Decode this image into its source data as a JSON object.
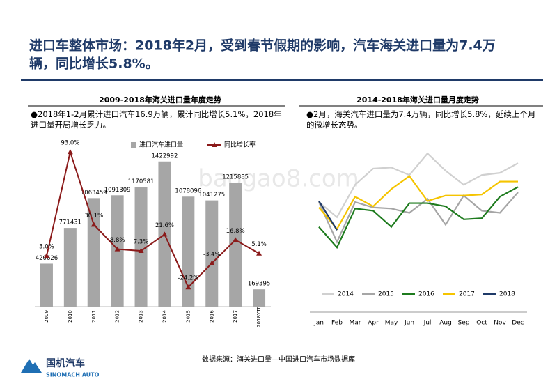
{
  "title_line1": "进口车整体市场：2018年2月，受到春节假期的影响，汽车海关进口量为7.4万",
  "title_line2": "辆，同比增长5.8%。",
  "source": "数据来源：海关进口量—中国进口汽车市场数据库",
  "watermark": "baogao8.com",
  "logo": {
    "name": "国机汽车",
    "english": "SINOMACH AUTO"
  },
  "chart_data": [
    {
      "type": "bar_line",
      "title": "2009-2018年海关进口量年度走势",
      "note": "●2018年1-2月累计进口汽车16.9万辆，累计同比增长5.1%，2018年进口量开局增长乏力。",
      "categories": [
        "2009",
        "2010",
        "2011",
        "2012",
        "2013",
        "2014",
        "2015",
        "2016",
        "2017",
        "2018YTD"
      ],
      "series": [
        {
          "name": "进口汽车进口量",
          "color": "#a6a6a6",
          "values": [
            420626,
            771431,
            1063459,
            1091309,
            1170581,
            1422992,
            1078096,
            1041275,
            1215885,
            169395
          ]
        },
        {
          "name": "同比增长率",
          "color": "#8b1a1a",
          "axis": "y2",
          "values": [
            3.0,
            93.0,
            30.1,
            8.8,
            7.3,
            21.6,
            -24.2,
            -3.4,
            16.8,
            5.1
          ],
          "value_labels": [
            "3.0%",
            "93.0%",
            "30.1%",
            "8.8%",
            "7.3%",
            "21.6%",
            "-24.2%",
            "-3.4%",
            "16.8%",
            "5.1%"
          ]
        }
      ],
      "ylim": [
        0,
        1640000
      ],
      "y2lim": [
        -41,
        104
      ]
    },
    {
      "type": "line",
      "title": "2014-2018年海关进口量月度走势",
      "note": "●2月，海关汽车进口量为7.4万辆，同比增长5.8%，延续上个月的微增长态势。",
      "categories": [
        "Jan",
        "Feb",
        "Mar",
        "Apr",
        "May",
        "Jun",
        "Jul",
        "Aug",
        "Sep",
        "Oct",
        "Nov",
        "Dec"
      ],
      "series": [
        {
          "name": "2014",
          "color": "#d0d0d0",
          "values": [
            10.0,
            8.6,
            11.6,
            13.1,
            13.2,
            12.5,
            14.5,
            12.9,
            11.6,
            12.5,
            12.7,
            13.6
          ]
        },
        {
          "name": "2015",
          "color": "#a6a6a6",
          "values": [
            10.0,
            6.3,
            10.0,
            9.5,
            9.4,
            9.0,
            10.3,
            7.9,
            10.6,
            9.2,
            9.0,
            10.9
          ]
        },
        {
          "name": "2016",
          "color": "#1e7b1e",
          "values": [
            7.7,
            5.8,
            9.4,
            9.2,
            7.7,
            9.9,
            9.9,
            9.6,
            8.4,
            8.5,
            10.5,
            11.4
          ]
        },
        {
          "name": "2017",
          "color": "#f5c400",
          "values": [
            9.5,
            7.5,
            10.5,
            9.6,
            11.2,
            12.4,
            10.1,
            10.6,
            10.6,
            10.7,
            11.9,
            11.9
          ]
        },
        {
          "name": "2018",
          "color": "#1f3a68",
          "values": [
            10.1,
            7.4,
            null,
            null,
            null,
            null,
            null,
            null,
            null,
            null,
            null,
            null
          ]
        }
      ],
      "ylim": [
        0,
        16
      ]
    }
  ]
}
